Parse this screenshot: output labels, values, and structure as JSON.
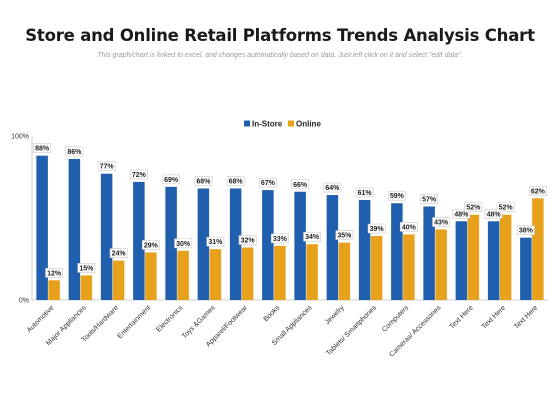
{
  "header": {
    "title": "Store and Online Retail Platforms Trends Analysis Chart",
    "subtitle": "This graph/chart is linked to excel, and changes automatically based on data. Just left click on it and select \"edit data\"."
  },
  "colors": {
    "in_store": "#1f5fae",
    "online": "#e8a11a",
    "axis": "#d0d0d0",
    "label_border": "#c8c8c8"
  },
  "chart_data": {
    "type": "bar",
    "title": "Store and Online Retail Platforms Trends Analysis Chart",
    "xlabel": "",
    "ylabel": "",
    "ylim": [
      0,
      100
    ],
    "y_ticks": [
      "100%",
      "0%"
    ],
    "legend_position": "top-center",
    "grid": false,
    "categories": [
      "Automotive",
      "Major Appliances",
      "Tools/Hardware",
      "Entertainment",
      "Electronics",
      "Toys &Games",
      "Apparel/Footwear",
      "Books",
      "Small Appliances",
      "Jewelry",
      "Tablets/ Smartphones",
      "Computers",
      "Cameras/ Accessories",
      "Text Here",
      "Text Here",
      "Text Here"
    ],
    "series": [
      {
        "name": "In-Store",
        "values": [
          88,
          86,
          77,
          72,
          69,
          68,
          68,
          67,
          66,
          64,
          61,
          59,
          57,
          48,
          48,
          38
        ]
      },
      {
        "name": "Online",
        "values": [
          12,
          15,
          24,
          29,
          30,
          31,
          32,
          33,
          34,
          35,
          39,
          40,
          43,
          52,
          52,
          62
        ]
      }
    ],
    "value_suffix": "%"
  }
}
